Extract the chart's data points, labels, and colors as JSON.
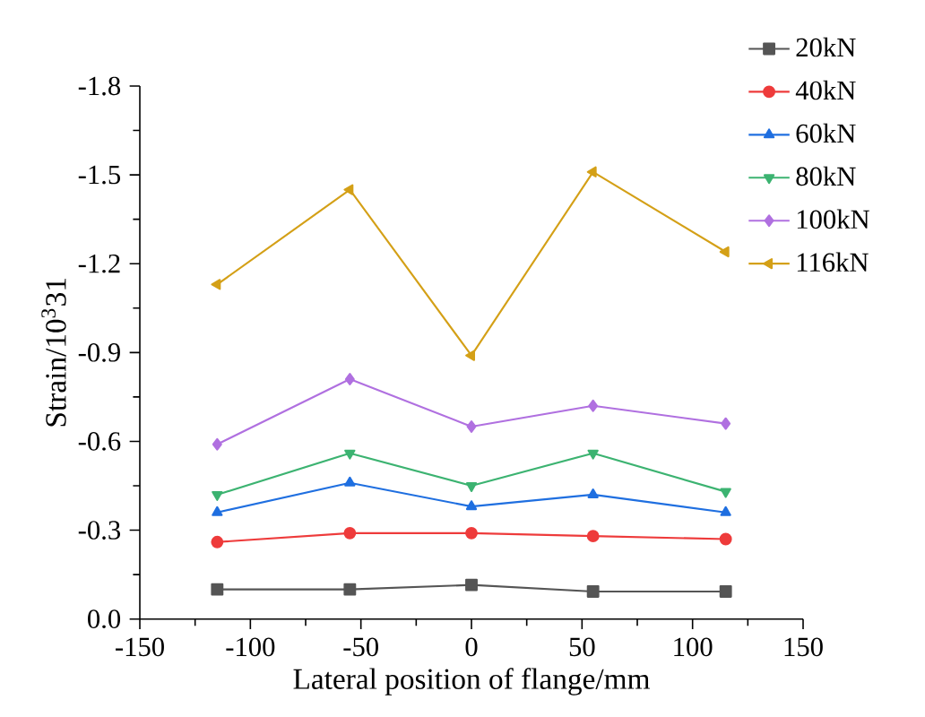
{
  "chart_data": {
    "type": "line",
    "xlabel": "Lateral position of flange/mm",
    "ylabel": "Strain/10$^{3}$31",
    "x": [
      -115,
      -55,
      0,
      55,
      115
    ],
    "xlim": [
      -150,
      150
    ],
    "xticks": [
      -150,
      -100,
      -50,
      0,
      50,
      100,
      150
    ],
    "ylim": [
      0,
      -1.8
    ],
    "yticks": [
      {
        "value": 0,
        "label": "0.0"
      },
      {
        "value": -0.3,
        "label": "-0.3"
      },
      {
        "value": -0.6,
        "label": "-0.6"
      },
      {
        "value": -0.9,
        "label": "-0.9"
      },
      {
        "value": -1.2,
        "label": "-1.2"
      },
      {
        "value": -1.5,
        "label": "-1.5"
      },
      {
        "value": -1.8,
        "label": "-1.8"
      }
    ],
    "legend": "top right",
    "grid": false,
    "series": [
      {
        "name": "20kN",
        "color": "#555555",
        "marker": "square",
        "values": [
          -0.1,
          -0.1,
          -0.115,
          -0.093,
          -0.093
        ]
      },
      {
        "name": "40kN",
        "color": "#ee3b3b",
        "marker": "circle",
        "values": [
          -0.26,
          -0.29,
          -0.29,
          -0.28,
          -0.27
        ]
      },
      {
        "name": "60kN",
        "color": "#1f6fe0",
        "marker": "triangle",
        "values": [
          -0.36,
          -0.46,
          -0.38,
          -0.42,
          -0.36
        ]
      },
      {
        "name": "80kN",
        "color": "#3cb371",
        "marker": "triangle-down",
        "values": [
          -0.42,
          -0.56,
          -0.45,
          -0.56,
          -0.43
        ]
      },
      {
        "name": "100kN",
        "color": "#b070e0",
        "marker": "diamond",
        "values": [
          -0.59,
          -0.81,
          -0.65,
          -0.72,
          -0.66
        ]
      },
      {
        "name": "116kN",
        "color": "#d4a017",
        "marker": "triangle-left",
        "values": [
          -1.13,
          -1.45,
          -0.89,
          -1.51,
          -1.24
        ]
      }
    ]
  }
}
